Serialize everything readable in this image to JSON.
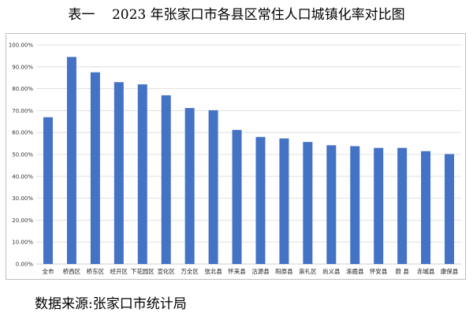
{
  "title": "表一    2023 年张家口市各县区常住人口城镇化率对比图",
  "source": "数据来源:张家口市统计局",
  "chart_data": {
    "type": "bar",
    "categories": [
      "全市",
      "桥西区",
      "桥东区",
      "经开区",
      "下花园区",
      "宣化区",
      "万全区",
      "张北县",
      "怀来县",
      "沽源县",
      "阳原县",
      "崇礼区",
      "尚义县",
      "涿鹿县",
      "怀安县",
      "蔚 县",
      "赤城县",
      "康保县"
    ],
    "values": [
      67.0,
      94.5,
      87.5,
      83.0,
      82.0,
      77.0,
      71.2,
      70.2,
      61.2,
      58.0,
      57.3,
      55.7,
      54.2,
      53.8,
      53.0,
      53.0,
      51.5,
      50.2
    ],
    "y_ticks": [
      "0.00%",
      "10.00%",
      "20.00%",
      "30.00%",
      "40.00%",
      "50.00%",
      "60.00%",
      "70.00%",
      "80.00%",
      "90.00%",
      "100.00%"
    ],
    "ylim": [
      0,
      100
    ],
    "grid": true,
    "bar_color": "#4472c4",
    "grid_color": "#d9d9d9"
  }
}
